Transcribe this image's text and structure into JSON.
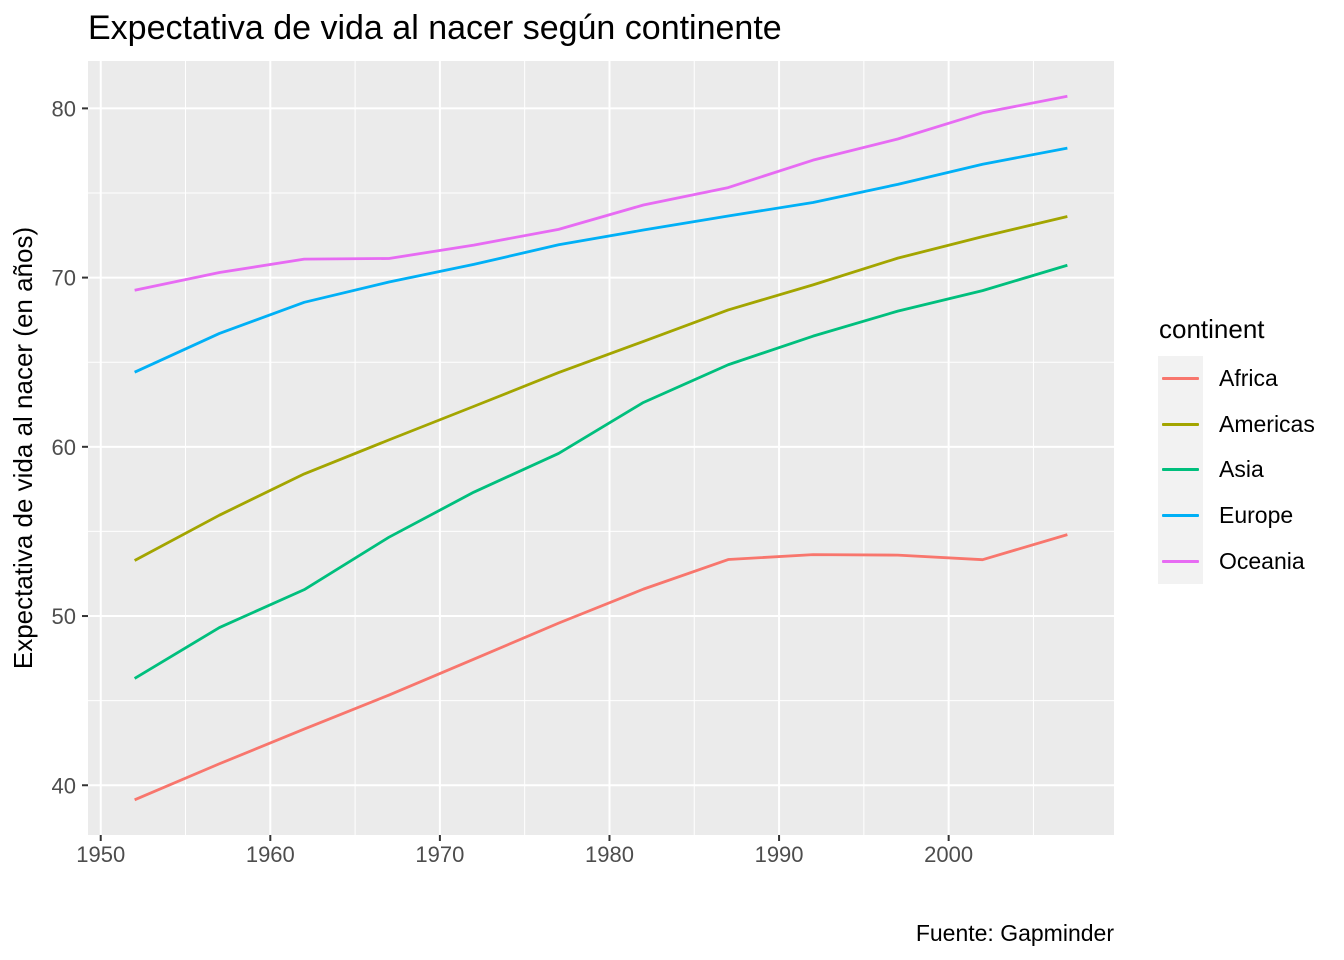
{
  "chart_data": {
    "type": "line",
    "title": "Expectativa de vida al nacer según continente",
    "xlabel": "",
    "ylabel": "Expectativa de vida al nacer (en años)",
    "caption": "Fuente: Gapminder",
    "legend_title": "continent",
    "legend_position": "right",
    "grid": true,
    "panel_bg": "#EBEBEB",
    "grid_color": "#FFFFFF",
    "axis_text_color": "#4D4D4D",
    "tick_mark_color": "#333333",
    "legend_key_bg": "#F2F2F2",
    "x": [
      1952,
      1957,
      1962,
      1967,
      1972,
      1977,
      1982,
      1987,
      1992,
      1997,
      2002,
      2007
    ],
    "x_ticks": [
      1950,
      1960,
      1970,
      1980,
      1990,
      2000
    ],
    "x_minor": [
      1955,
      1965,
      1975,
      1985,
      1995,
      2005
    ],
    "xlim": [
      1949.25,
      2009.75
    ],
    "y_ticks": [
      40,
      50,
      60,
      70,
      80
    ],
    "y_minor": [
      45,
      55,
      65,
      75
    ],
    "ylim": [
      37.06,
      82.8
    ],
    "series": [
      {
        "name": "Africa",
        "color": "#F8766D",
        "values": [
          39.14,
          41.27,
          43.32,
          45.33,
          47.45,
          49.58,
          51.59,
          53.34,
          53.63,
          53.6,
          53.33,
          54.81
        ]
      },
      {
        "name": "Americas",
        "color": "#A3A500",
        "values": [
          53.28,
          55.96,
          58.4,
          60.41,
          62.39,
          64.39,
          66.23,
          68.09,
          69.57,
          71.15,
          72.42,
          73.61
        ]
      },
      {
        "name": "Asia",
        "color": "#00BF7D",
        "values": [
          46.31,
          49.32,
          51.56,
          54.66,
          57.32,
          59.61,
          62.62,
          64.85,
          66.54,
          68.02,
          69.23,
          70.73
        ]
      },
      {
        "name": "Europe",
        "color": "#00B0F6",
        "values": [
          64.41,
          66.7,
          68.54,
          69.74,
          70.78,
          71.94,
          72.81,
          73.64,
          74.44,
          75.51,
          76.7,
          77.65
        ]
      },
      {
        "name": "Oceania",
        "color": "#E76BF3",
        "values": [
          69.25,
          70.3,
          71.09,
          71.13,
          71.92,
          72.85,
          74.29,
          75.32,
          76.94,
          78.19,
          79.74,
          80.72
        ]
      }
    ]
  }
}
